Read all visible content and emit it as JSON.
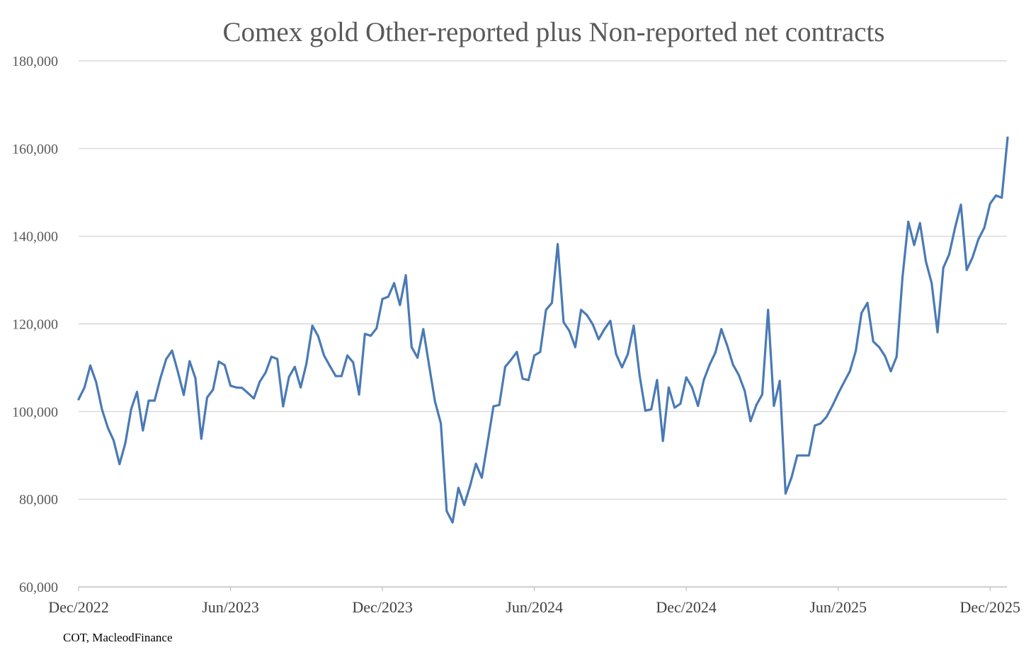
{
  "chart_data": {
    "type": "line",
    "title": "Comex gold Other-reported plus Non-reported net contracts",
    "xlabel": "",
    "ylabel": "",
    "source": "COT, MacleodFinance",
    "ylim": [
      60000,
      180000
    ],
    "yticks": [
      60000,
      80000,
      100000,
      120000,
      140000,
      160000,
      180000
    ],
    "ytick_labels": [
      "60,000",
      "80,000",
      "100,000",
      "120,000",
      "140,000",
      "160,000",
      "180,000"
    ],
    "xtick_labels": [
      "Dec/2022",
      "Jun/2023",
      "Dec/2023",
      "Jun/2024",
      "Dec/2024",
      "Jun/2025",
      "Dec/2025"
    ],
    "xtick_index": [
      0,
      26,
      52,
      78,
      104,
      130,
      156
    ],
    "grid": true,
    "legend": "none",
    "colors": {
      "line": "#4a7ab4",
      "grid": "#d0d0d0",
      "axis": "#bfbfbf"
    },
    "series": [
      {
        "name": "Other-reported plus Non-reported net contracts",
        "values": [
          102800,
          105500,
          110500,
          106700,
          100500,
          96300,
          93400,
          88000,
          92800,
          100600,
          104500,
          95700,
          102500,
          102500,
          107600,
          112000,
          113900,
          109000,
          103800,
          111500,
          107600,
          93800,
          103200,
          105000,
          111400,
          110600,
          105900,
          105500,
          105400,
          104200,
          103000,
          106800,
          108900,
          112500,
          112000,
          101200,
          107900,
          110200,
          105500,
          111000,
          119600,
          117200,
          112800,
          110400,
          108100,
          108100,
          112800,
          111200,
          103900,
          117700,
          117300,
          119000,
          125700,
          126200,
          129300,
          124300,
          131100,
          114700,
          112300,
          118800,
          110400,
          102300,
          97300,
          77300,
          74700,
          82600,
          78700,
          83100,
          88100,
          84900,
          92900,
          101200,
          101500,
          110200,
          111800,
          113600,
          107500,
          107200,
          112800,
          113600,
          123200,
          124800,
          138200,
          120400,
          118400,
          114700,
          123200,
          122000,
          119900,
          116500,
          118800,
          120700,
          113100,
          110100,
          113100,
          119600,
          108300,
          100200,
          100500,
          107200,
          93300,
          105500,
          100900,
          101800,
          107800,
          105500,
          101300,
          107200,
          110700,
          113500,
          118800,
          115100,
          110700,
          108300,
          104700,
          97800,
          101500,
          103900,
          123200,
          101300,
          107000,
          81300,
          84900,
          90000,
          90000,
          90000,
          96800,
          97300,
          98800,
          101300,
          104100,
          106700,
          109200,
          113800,
          122500,
          124800,
          116000,
          114700,
          112700,
          109200,
          112500,
          130600,
          143300,
          138000,
          143000,
          134300,
          129300,
          118100,
          132800,
          135900,
          141900,
          147200,
          132300,
          135200,
          139300,
          141900,
          147400,
          149300,
          148800,
          162500
        ]
      }
    ]
  }
}
